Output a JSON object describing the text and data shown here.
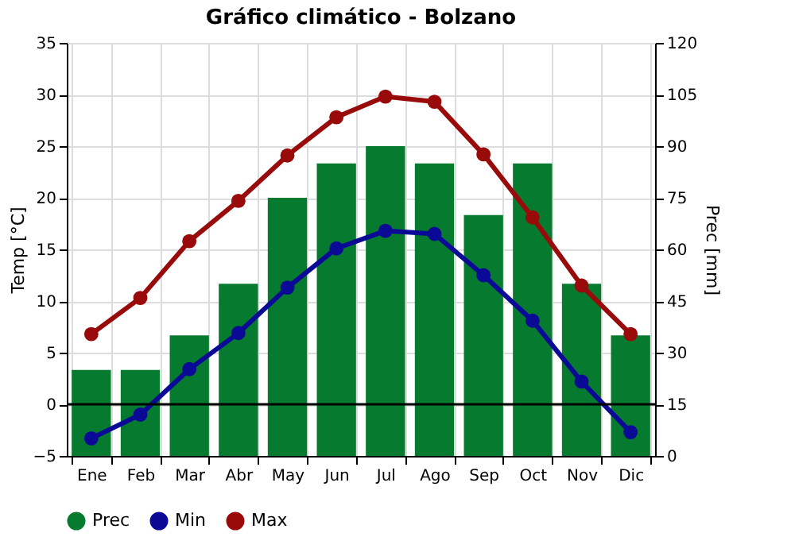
{
  "chart_data": {
    "type": "line",
    "title": "Gráfico climático - Bolzano",
    "ylabel": "Temp [°C]",
    "y2label": "Prec [mm]",
    "categories": [
      "Ene",
      "Feb",
      "Mar",
      "Abr",
      "May",
      "Jun",
      "Jul",
      "Ago",
      "Sep",
      "Oct",
      "Nov",
      "Dic"
    ],
    "series": [
      {
        "name": "Prec",
        "type": "bar",
        "axis": "y2",
        "color": "#067a2e",
        "values": [
          25,
          25,
          35,
          50,
          75,
          85,
          90,
          85,
          70,
          85,
          50,
          35
        ]
      },
      {
        "name": "Min",
        "color": "#0a0a96",
        "values": [
          -3.3,
          -1,
          3.4,
          6.9,
          11.3,
          15.1,
          16.8,
          16.5,
          12.5,
          8.1,
          2.2,
          -2.7
        ]
      },
      {
        "name": "Max",
        "color": "#990b0b",
        "values": [
          6.8,
          10.3,
          15.8,
          19.7,
          24.1,
          27.8,
          29.8,
          29.3,
          24.2,
          18.1,
          11.5,
          6.8
        ]
      }
    ],
    "ylim": [
      -5,
      35
    ],
    "yticks": [
      -5,
      0,
      5,
      10,
      15,
      20,
      25,
      30,
      35
    ],
    "y2lim": [
      0,
      120
    ],
    "y2ticks": [
      0,
      15,
      30,
      45,
      60,
      75,
      90,
      105,
      120
    ],
    "ref_lines": [
      {
        "axis": "y",
        "value": 0,
        "color": "#000000"
      }
    ],
    "grid": true,
    "legend": "bottom",
    "marker": "circle",
    "line_style": "solid"
  }
}
